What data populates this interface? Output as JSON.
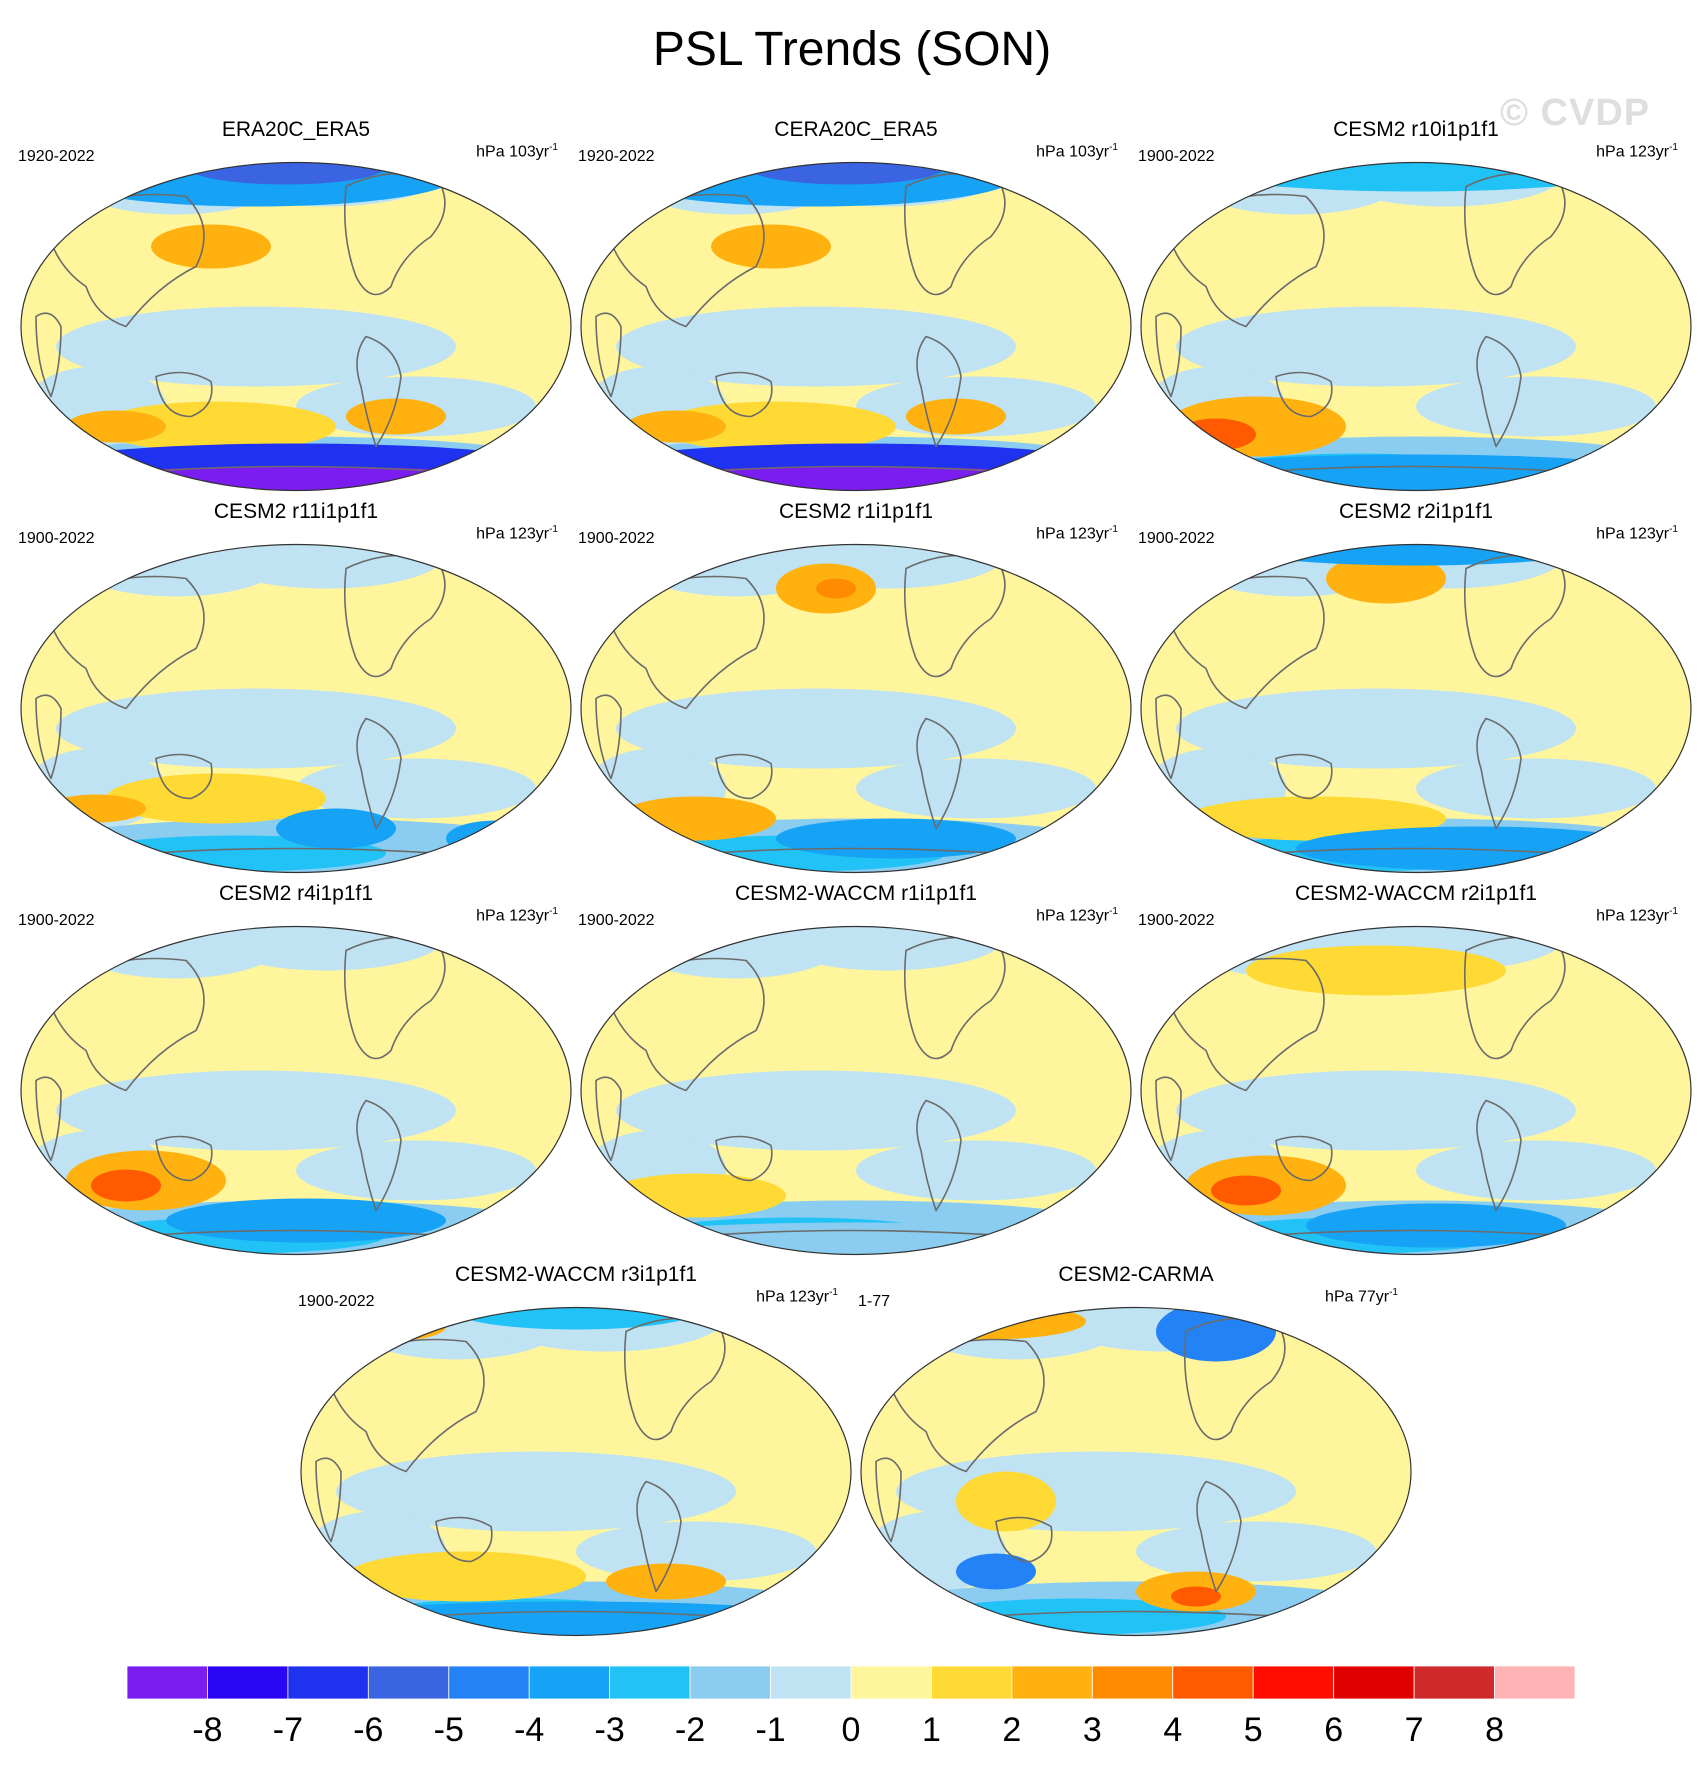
{
  "title": "PSL Trends (SON)",
  "watermark": "© CVDP",
  "colors": {
    "ocean_base": "#fff59d",
    "coast": "#6b6b6b"
  },
  "panels": [
    {
      "title": "ERA20C_ERA5",
      "period": "1920-2022",
      "units": "hPa 103yr",
      "units_exp": "-1"
    },
    {
      "title": "CERA20C_ERA5",
      "period": "1920-2022",
      "units": "hPa 103yr",
      "units_exp": "-1"
    },
    {
      "title": "CESM2 r10i1p1f1",
      "period": "1900-2022",
      "units": "hPa 123yr",
      "units_exp": "-1"
    },
    {
      "title": "CESM2 r11i1p1f1",
      "period": "1900-2022",
      "units": "hPa 123yr",
      "units_exp": "-1"
    },
    {
      "title": "CESM2 r1i1p1f1",
      "period": "1900-2022",
      "units": "hPa 123yr",
      "units_exp": "-1"
    },
    {
      "title": "CESM2 r2i1p1f1",
      "period": "1900-2022",
      "units": "hPa 123yr",
      "units_exp": "-1"
    },
    {
      "title": "CESM2 r4i1p1f1",
      "period": "1900-2022",
      "units": "hPa 123yr",
      "units_exp": "-1"
    },
    {
      "title": "CESM2-WACCM r1i1p1f1",
      "period": "1900-2022",
      "units": "hPa 123yr",
      "units_exp": "-1"
    },
    {
      "title": "CESM2-WACCM r2i1p1f1",
      "period": "1900-2022",
      "units": "hPa 123yr",
      "units_exp": "-1"
    },
    {
      "title": "CESM2-WACCM r3i1p1f1",
      "period": "1900-2022",
      "units": "hPa 123yr",
      "units_exp": "-1"
    },
    {
      "title": "CESM2-CARMA",
      "period": "1-77",
      "units": "hPa 77yr",
      "units_exp": "-1"
    }
  ],
  "colorbar": {
    "colors": [
      "#7b1cf0",
      "#2a06f5",
      "#1f32ef",
      "#3a64e1",
      "#2382f6",
      "#16a3f5",
      "#21c2f6",
      "#8acdf0",
      "#bfe3f3",
      "#fff59d",
      "#ffd934",
      "#ffb20f",
      "#ff8c00",
      "#ff5a00",
      "#ff0d00",
      "#e00000",
      "#d12a2a",
      "#ffb3b5"
    ],
    "labels": [
      "-8",
      "-7",
      "-6",
      "-5",
      "-4",
      "-3",
      "-2",
      "-1",
      "0",
      "1",
      "2",
      "3",
      "4",
      "5",
      "6",
      "7",
      "8"
    ]
  }
}
